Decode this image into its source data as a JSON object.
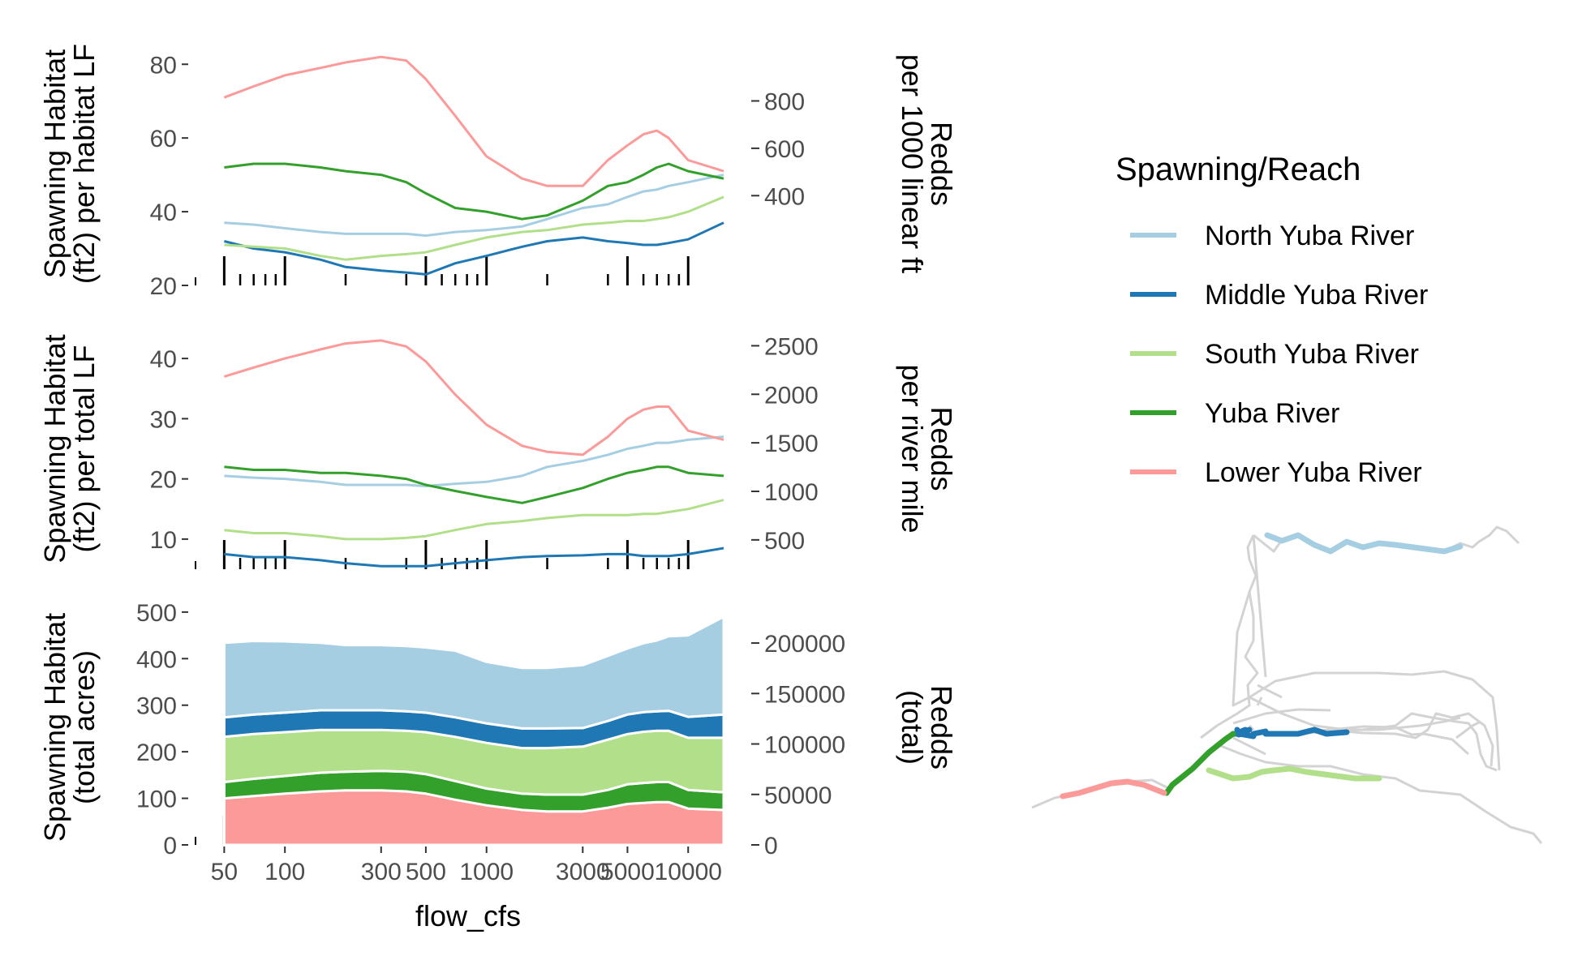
{
  "colors": {
    "North Yuba River": "#a6cee3",
    "Middle Yuba River": "#1f78b4",
    "South Yuba River": "#b2df8a",
    "Yuba River": "#33a02c",
    "Lower Yuba River": "#fb9a99",
    "axis": "#333333",
    "map_base": "#d3d3d3"
  },
  "legend": {
    "title": "Spawning/Reach",
    "position": "right",
    "items": [
      "North Yuba River",
      "Middle Yuba River",
      "South Yuba River",
      "Yuba River",
      "Lower Yuba River"
    ]
  },
  "x_axis": {
    "label": "flow_cfs",
    "scale": "log10",
    "range": [
      45,
      15000
    ],
    "tick_labels": [
      "50",
      "100",
      "300",
      "500",
      "1000",
      "3000",
      "5000",
      "10000"
    ],
    "tick_values": [
      50,
      100,
      300,
      500,
      1000,
      3000,
      5000,
      10000
    ],
    "rug_minor": [
      60,
      70,
      80,
      90,
      200,
      400,
      600,
      700,
      800,
      900,
      2000,
      4000,
      6000,
      7000,
      8000,
      9000
    ],
    "rug_major": [
      50,
      100,
      500,
      1000,
      5000,
      10000
    ]
  },
  "panels": [
    {
      "id": "per-habitat-lf",
      "left_label_lines": [
        "Spawning Habitat",
        "(ft2) per habitat LF"
      ],
      "right_label_lines": [
        "Redds",
        "per 1000 linear ft"
      ]
    },
    {
      "id": "per-total-lf",
      "left_label_lines": [
        "Spawning Habitat",
        "(ft2) per total LF"
      ],
      "right_label_lines": [
        "Redds",
        "per river mile"
      ]
    },
    {
      "id": "total",
      "left_label_lines": [
        "Spawning Habitat",
        "(total acres)"
      ],
      "right_label_lines": [
        "Redds",
        "(total)"
      ]
    }
  ],
  "chart_data": [
    {
      "type": "line",
      "x_scale": "log10",
      "xlim": [
        45,
        15000
      ],
      "ylim": [
        20,
        86
      ],
      "y_ticks": [
        20,
        40,
        60,
        80
      ],
      "y_tick_labels": [
        "20",
        "40",
        "60",
        "80"
      ],
      "y2": {
        "ticks": [
          400,
          600,
          800
        ],
        "tick_labels": [
          "400",
          "600",
          "800"
        ],
        "lim_at_y": [
          20,
          86
        ],
        "lim": [
          20.9,
          1048.2
        ]
      },
      "grid": false,
      "x": [
        50,
        70,
        100,
        150,
        200,
        300,
        400,
        500,
        700,
        1000,
        1500,
        2000,
        3000,
        4000,
        5000,
        6000,
        7000,
        8000,
        10000,
        15000
      ],
      "series": [
        {
          "name": "North Yuba River",
          "values": [
            37,
            36.5,
            35.5,
            34.5,
            34,
            34,
            34,
            33.5,
            34.5,
            35,
            36,
            38,
            41,
            42,
            44,
            45.5,
            46,
            47,
            48,
            50
          ]
        },
        {
          "name": "Middle Yuba River",
          "values": [
            32,
            30,
            29,
            27,
            25,
            24,
            23.5,
            23,
            26,
            28,
            30.5,
            32,
            33,
            32,
            31.5,
            31,
            31,
            31.5,
            32.5,
            37
          ]
        },
        {
          "name": "South Yuba River",
          "values": [
            31,
            30.5,
            30,
            28,
            27,
            28,
            28.5,
            29,
            31,
            33,
            34.5,
            35,
            36.5,
            37,
            37.5,
            37.5,
            38,
            38.5,
            40,
            44
          ]
        },
        {
          "name": "Yuba River",
          "values": [
            52,
            53,
            53,
            52,
            51,
            50,
            48,
            45,
            41,
            40,
            38,
            39,
            43,
            47,
            48,
            50,
            52,
            53,
            51,
            49
          ]
        },
        {
          "name": "Lower Yuba River",
          "values": [
            71,
            74,
            77,
            79,
            80.5,
            82,
            81,
            76,
            66,
            55,
            49,
            47,
            47,
            54,
            58,
            61,
            62,
            60,
            54,
            51
          ]
        }
      ]
    },
    {
      "type": "line",
      "x_scale": "log10",
      "xlim": [
        45,
        15000
      ],
      "ylim": [
        5,
        45
      ],
      "y_ticks": [
        10,
        20,
        30,
        40
      ],
      "y_tick_labels": [
        "10",
        "20",
        "30",
        "40"
      ],
      "y2": {
        "ticks": [
          500,
          1000,
          1500,
          2000,
          2500
        ],
        "tick_labels": [
          "500",
          "1000",
          "1500",
          "2000",
          "2500"
        ],
        "lim_at_y": [
          5,
          45
        ],
        "lim": [
          198,
          2679
        ]
      },
      "grid": false,
      "x": [
        50,
        70,
        100,
        150,
        200,
        300,
        400,
        500,
        700,
        1000,
        1500,
        2000,
        3000,
        4000,
        5000,
        6000,
        7000,
        8000,
        10000,
        15000
      ],
      "series": [
        {
          "name": "North Yuba River",
          "values": [
            20.5,
            20.2,
            20,
            19.5,
            19,
            19,
            19,
            18.8,
            19.2,
            19.5,
            20.5,
            22,
            23,
            24,
            25,
            25.5,
            26,
            26,
            26.5,
            27
          ]
        },
        {
          "name": "Middle Yuba River",
          "values": [
            7.5,
            7,
            7,
            6.5,
            6,
            5.5,
            5.5,
            5.5,
            6,
            6.5,
            7,
            7.2,
            7.3,
            7.5,
            7.5,
            7.2,
            7.2,
            7.2,
            7.5,
            8.5
          ]
        },
        {
          "name": "South Yuba River",
          "values": [
            11.5,
            11,
            11,
            10.5,
            10,
            10,
            10.2,
            10.5,
            11.5,
            12.5,
            13,
            13.5,
            14,
            14,
            14,
            14.2,
            14.2,
            14.5,
            15,
            16.5
          ]
        },
        {
          "name": "Yuba River",
          "values": [
            22,
            21.5,
            21.5,
            21,
            21,
            20.5,
            20,
            19,
            18,
            17,
            16,
            17,
            18.5,
            20,
            21,
            21.5,
            22,
            22,
            21,
            20.5
          ]
        },
        {
          "name": "Lower Yuba River",
          "values": [
            37,
            38.5,
            40,
            41.5,
            42.5,
            43,
            42,
            39.5,
            34,
            29,
            25.5,
            24.5,
            24,
            27,
            30,
            31.5,
            32,
            32,
            28,
            26.5
          ]
        }
      ]
    },
    {
      "type": "area",
      "stacked": true,
      "x_scale": "log10",
      "xlim": [
        45,
        15000
      ],
      "ylim": [
        0,
        505
      ],
      "y_ticks": [
        0,
        100,
        200,
        300,
        400,
        500
      ],
      "y_tick_labels": [
        "0",
        "100",
        "200",
        "300",
        "400",
        "500"
      ],
      "y2": {
        "ticks": [
          0,
          50000,
          100000,
          150000,
          200000
        ],
        "tick_labels": [
          "0",
          "50000",
          "100000",
          "150000",
          "200000"
        ],
        "lim_at_y": [
          0,
          505
        ],
        "lim": [
          0,
          233000
        ]
      },
      "grid": false,
      "x": [
        50,
        70,
        100,
        150,
        200,
        300,
        400,
        500,
        700,
        1000,
        1500,
        2000,
        3000,
        4000,
        5000,
        6000,
        7000,
        8000,
        10000,
        15000
      ],
      "series": [
        {
          "name": "Lower Yuba River",
          "values": [
            100,
            105,
            110,
            115,
            117,
            117,
            115,
            110,
            97,
            85,
            75,
            72,
            72,
            80,
            88,
            90,
            92,
            92,
            78,
            75
          ]
        },
        {
          "name": "Yuba River",
          "values": [
            35,
            37,
            38,
            40,
            40,
            42,
            42,
            42,
            40,
            36,
            35,
            36,
            36,
            38,
            42,
            43,
            43,
            43,
            40,
            38
          ]
        },
        {
          "name": "South Yuba River",
          "values": [
            97,
            96,
            94,
            92,
            90,
            88,
            88,
            90,
            95,
            98,
            98,
            100,
            103,
            108,
            108,
            110,
            110,
            110,
            112,
            117
          ]
        },
        {
          "name": "Middle Yuba River",
          "values": [
            42,
            42,
            42,
            42,
            42,
            42,
            42,
            42,
            42,
            42,
            42,
            42,
            40,
            40,
            42,
            42,
            42,
            43,
            45,
            50
          ]
        },
        {
          "name": "North Yuba River",
          "values": [
            160,
            158,
            153,
            145,
            140,
            140,
            140,
            140,
            143,
            132,
            130,
            130,
            135,
            140,
            142,
            148,
            152,
            160,
            175,
            210
          ]
        }
      ]
    }
  ]
}
